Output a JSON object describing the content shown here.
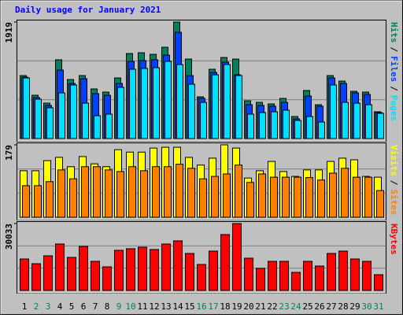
{
  "chart_data": {
    "type": "bar",
    "title": "Daily usage for January 2021",
    "categories": [
      "1",
      "2",
      "3",
      "4",
      "5",
      "6",
      "7",
      "8",
      "9",
      "10",
      "11",
      "12",
      "13",
      "14",
      "15",
      "16",
      "17",
      "18",
      "19",
      "20",
      "21",
      "22",
      "23",
      "24",
      "25",
      "26",
      "27",
      "28",
      "29",
      "30",
      "31"
    ],
    "category_colors": [
      "#000000",
      "#00805c",
      "#00805c",
      "#000000",
      "#000000",
      "#000000",
      "#000000",
      "#000000",
      "#00805c",
      "#00805c",
      "#000000",
      "#000000",
      "#000000",
      "#000000",
      "#000000",
      "#00805c",
      "#00805c",
      "#000000",
      "#000000",
      "#000000",
      "#000000",
      "#000000",
      "#00805c",
      "#00805c",
      "#000000",
      "#000000",
      "#000000",
      "#000000",
      "#000000",
      "#00805c",
      "#00805c"
    ],
    "legend_separator": "/",
    "panels": [
      {
        "ylim": [
          0,
          1919
        ],
        "yticks": [
          1919
        ],
        "series": [
          {
            "name": "Hits",
            "color": "#00805c",
            "values": [
              1037,
              713,
              583,
              1297,
              972,
              1037,
              817,
              765,
              998,
              1400,
              1413,
              1387,
              1504,
              1919,
              1309,
              687,
              1141,
              1335,
              1309,
              622,
              596,
              570,
              661,
              363,
              791,
              557,
              1037,
              946,
              778,
              765,
              441
            ]
          },
          {
            "name": "Files",
            "color": "#0040ff",
            "values": [
              1011,
              674,
              545,
              1128,
              908,
              985,
              739,
              713,
              908,
              1271,
              1284,
              1297,
              1374,
              1750,
              1037,
              661,
              1089,
              1258,
              1050,
              557,
              545,
              532,
              596,
              324,
              700,
              532,
              998,
              908,
              752,
              726,
              428
            ]
          },
          {
            "name": "Pages",
            "color": "#00e0ff",
            "values": [
              998,
              648,
              506,
              752,
              882,
              583,
              376,
              402,
              843,
              1141,
              1154,
              1167,
              1271,
              1219,
              895,
              596,
              1050,
              1219,
              1037,
              402,
              428,
              441,
              467,
              298,
              363,
              272,
              882,
              596,
              583,
              557,
              415
            ]
          }
        ]
      },
      {
        "ylim": [
          0,
          179
        ],
        "yticks": [
          179
        ],
        "series": [
          {
            "name": "Visits",
            "color": "#ffff00",
            "values": [
              115,
              115,
              140,
              148,
              125,
              150,
              132,
              125,
              167,
              161,
              161,
              171,
              173,
              173,
              148,
              129,
              146,
              179,
              171,
              97,
              115,
              138,
              113,
              101,
              117,
              117,
              138,
              146,
              142,
              101,
              99
            ]
          },
          {
            "name": "Sites",
            "color": "#ff8000",
            "values": [
              78,
              78,
              88,
              117,
              95,
              125,
              125,
              117,
              113,
              125,
              115,
              125,
              125,
              131,
              121,
              95,
              101,
              107,
              129,
              86,
              107,
              99,
              99,
              99,
              98,
              92,
              109,
              121,
              99,
              99,
              66
            ]
          }
        ]
      },
      {
        "ylim": [
          0,
          30033
        ],
        "yticks": [
          30033
        ],
        "series": [
          {
            "name": "KBytes",
            "color": "#ff0000",
            "values": [
              14133,
              12013,
              15546,
              20846,
              14840,
              19786,
              13073,
              10600,
              18020,
              18726,
              19433,
              18373,
              20846,
              22259,
              16606,
              11660,
              17666,
              25086,
              30033,
              14486,
              9893,
              13073,
              13073,
              8126,
              13073,
              10953,
              16606,
              17666,
              14133,
              13073,
              7066
            ]
          }
        ]
      }
    ]
  }
}
